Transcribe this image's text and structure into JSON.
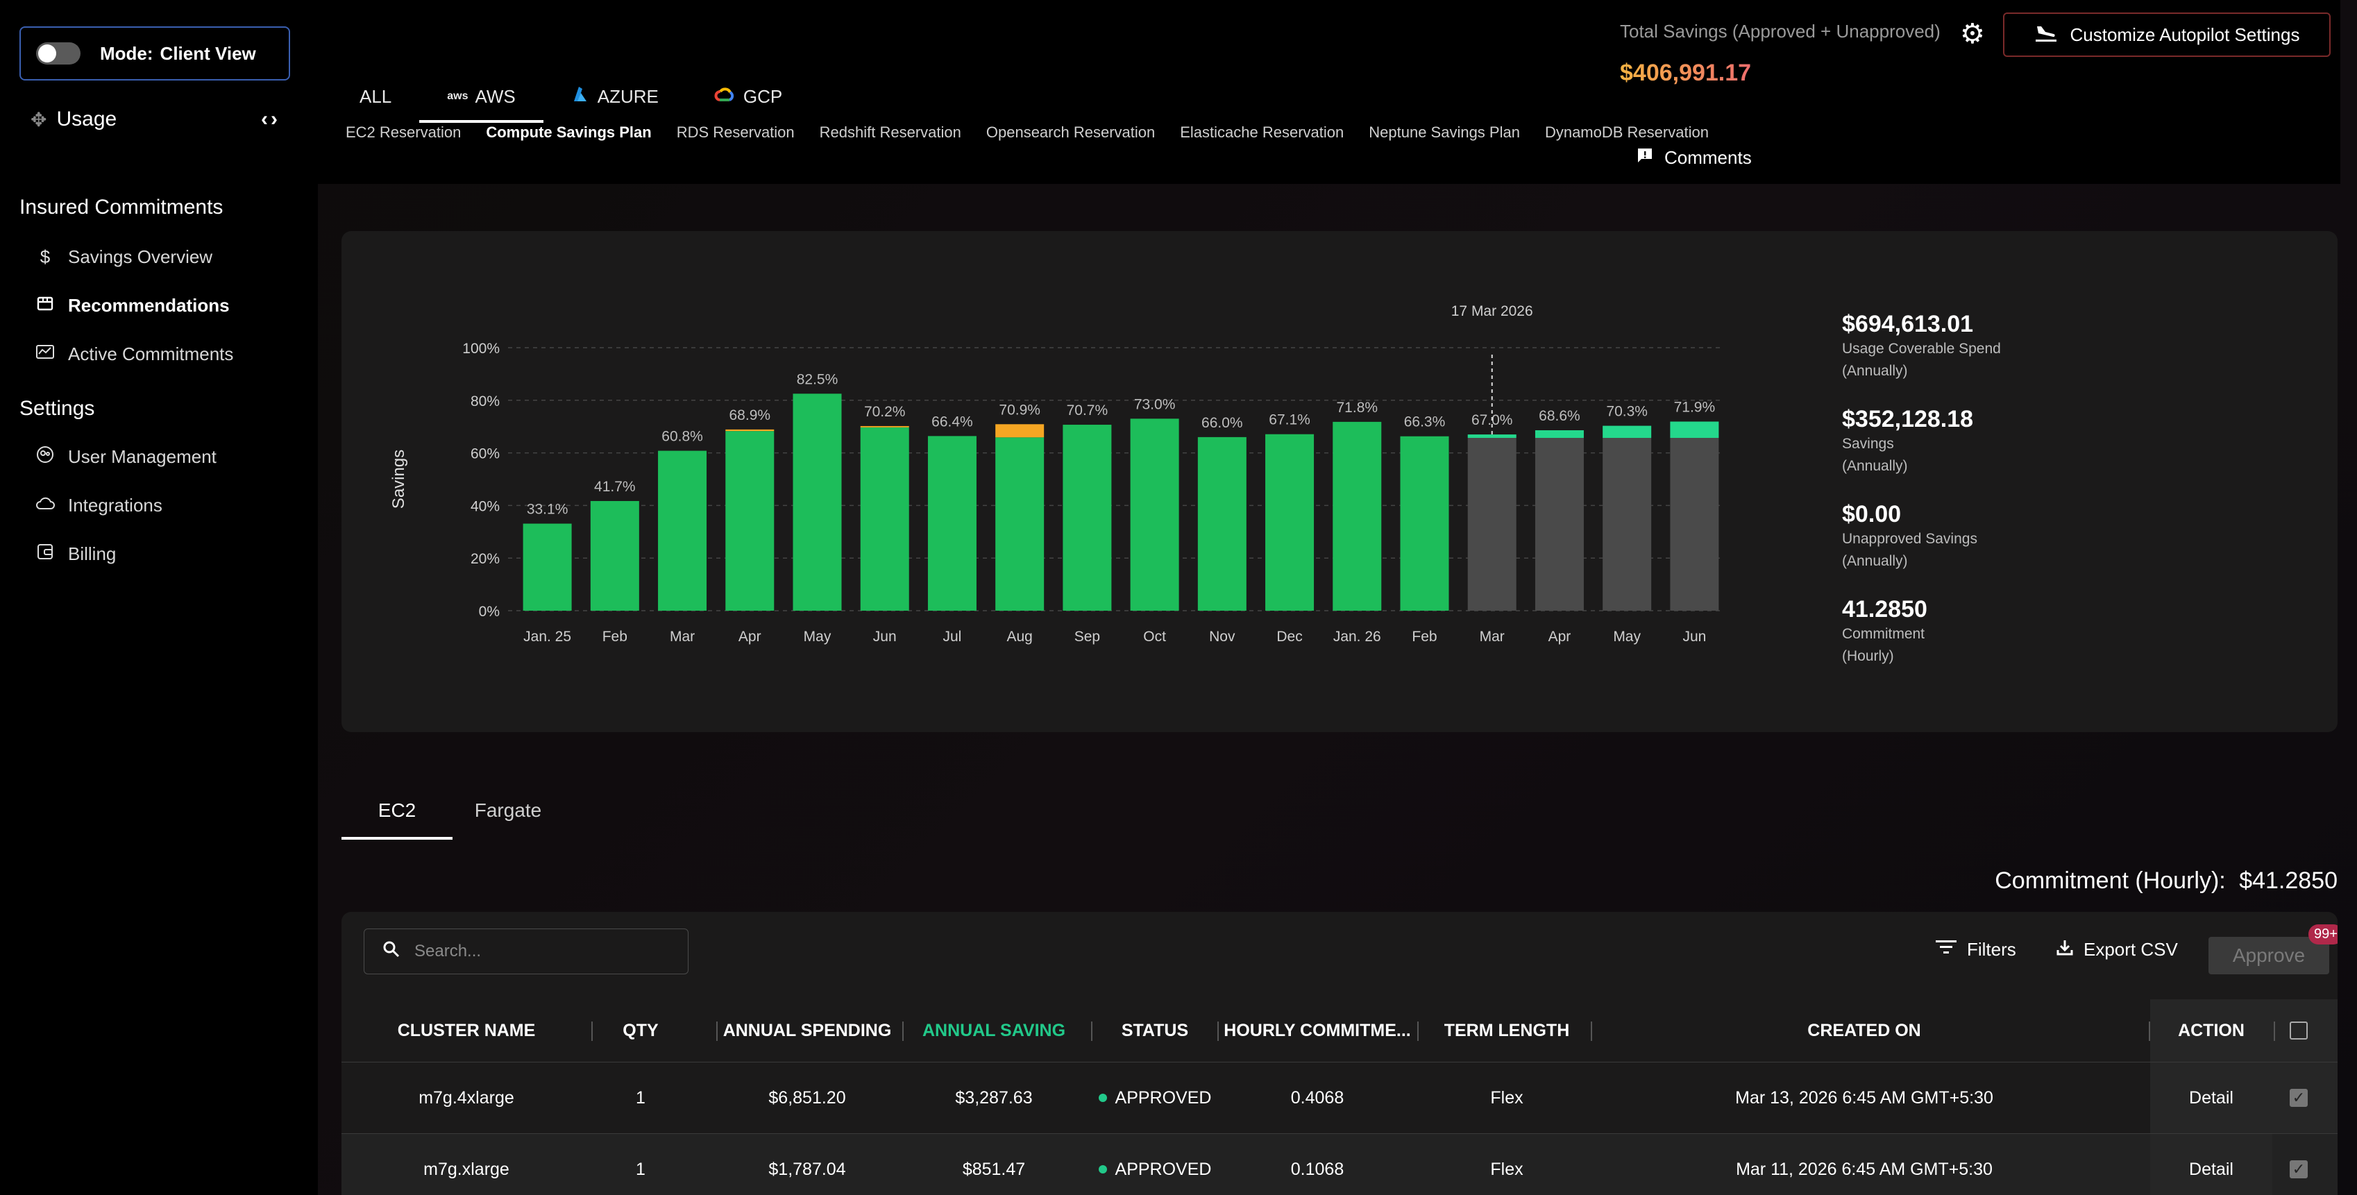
{
  "sidebar": {
    "mode_label": "Mode:",
    "mode_value": "Client View",
    "usage_label": "Usage",
    "collapse_icon": "code-arrows-icon",
    "sections": [
      {
        "title": "Insured Commitments"
      },
      {
        "title": "Settings"
      }
    ],
    "items": [
      {
        "label": "Savings Overview",
        "icon": "dollar-icon"
      },
      {
        "label": "Recommendations",
        "icon": "storefront-icon"
      },
      {
        "label": "Active Commitments",
        "icon": "chart-line-icon"
      },
      {
        "label": "User Management",
        "icon": "user-management-icon"
      },
      {
        "label": "Integrations",
        "icon": "cloud-icon"
      },
      {
        "label": "Billing",
        "icon": "wallet-icon"
      }
    ]
  },
  "header": {
    "cloud_tabs": [
      "ALL",
      "AWS",
      "AZURE",
      "GCP"
    ],
    "aws_logo_text": "aws",
    "active_cloud": "AWS",
    "sub_tabs": [
      "EC2 Reservation",
      "Compute Savings Plan",
      "RDS Reservation",
      "Redshift Reservation",
      "Opensearch Reservation",
      "Elasticache Reservation",
      "Neptune Savings Plan",
      "DynamoDB Reservation"
    ],
    "active_sub_tab": "Compute Savings Plan",
    "comments_label": "Comments",
    "total_savings_label": "Total Savings (Approved + Unapproved)",
    "total_savings_value": "$406,991.17",
    "customize_label": "Customize Autopilot Settings"
  },
  "chart_data": {
    "type": "bar",
    "ylabel": "Savings",
    "ylim": [
      0,
      100
    ],
    "yticks": [
      "0%",
      "20%",
      "40%",
      "60%",
      "80%",
      "100%"
    ],
    "categories": [
      "Jan. 25",
      "Feb",
      "Mar",
      "Apr",
      "May",
      "Jun",
      "Jul",
      "Aug",
      "Sep",
      "Oct",
      "Nov",
      "Dec",
      "Jan. 26",
      "Feb",
      "Mar",
      "Apr",
      "May",
      "Jun"
    ],
    "values": [
      33.1,
      41.7,
      60.8,
      68.9,
      82.5,
      70.2,
      66.4,
      70.9,
      70.7,
      73.0,
      66.0,
      67.1,
      71.8,
      66.3,
      67.0,
      68.6,
      70.3,
      71.9
    ],
    "labels": [
      "33.1%",
      "41.7%",
      "60.8%",
      "68.9%",
      "82.5%",
      "70.2%",
      "66.4%",
      "70.9%",
      "70.7%",
      "73.0%",
      "66.0%",
      "67.1%",
      "71.8%",
      "66.3%",
      "67.0%",
      "68.6%",
      "70.3%",
      "71.9%"
    ],
    "unapproved_segment": [
      0,
      0,
      0,
      0.6,
      0,
      0.5,
      0,
      5.0,
      0,
      0,
      0,
      0,
      0,
      0,
      0,
      0,
      0,
      0
    ],
    "projected_base": [
      0,
      0,
      0,
      0,
      0,
      0,
      0,
      0,
      0,
      0,
      0,
      0,
      0,
      0,
      65.7,
      65.7,
      65.7,
      65.7
    ],
    "projected_from_index": 14,
    "annotation": "17 Mar 2026",
    "colors": {
      "actual": "#1dbd5a",
      "unapproved": "#f5a623",
      "projected_base": "#4a4a4a",
      "projected_top": "#24d88c"
    }
  },
  "stats": [
    {
      "value": "$694,613.01",
      "label1": "Usage Coverable Spend",
      "label2": "(Annually)"
    },
    {
      "value": "$352,128.18",
      "label1": "Savings",
      "label2": "(Annually)"
    },
    {
      "value": "$0.00",
      "label1": "Unapproved Savings",
      "label2": "(Annually)"
    },
    {
      "value": "41.2850",
      "label1": "Commitment",
      "label2": "(Hourly)"
    }
  ],
  "type_tabs": [
    "EC2",
    "Fargate"
  ],
  "commitment_hourly_label": "Commitment (Hourly):",
  "commitment_hourly_value": "$41.2850",
  "table": {
    "search_placeholder": "Search...",
    "filters_label": "Filters",
    "export_label": "Export CSV",
    "approve_label": "Approve",
    "badge": "99+",
    "headers": [
      "CLUSTER NAME",
      "QTY",
      "ANNUAL SPENDING",
      "ANNUAL SAVING",
      "STATUS",
      "HOURLY COMMITME...",
      "TERM LENGTH",
      "CREATED ON",
      "ACTION"
    ],
    "rows": [
      {
        "cluster": "m7g.4xlarge",
        "qty": "1",
        "spending": "$6,851.20",
        "saving": "$3,287.63",
        "status": "APPROVED",
        "hourly": "0.4068",
        "term": "Flex",
        "created": "Mar 13, 2026 6:45 AM GMT+5:30",
        "action": "Detail"
      },
      {
        "cluster": "m7g.xlarge",
        "qty": "1",
        "spending": "$1,787.04",
        "saving": "$851.47",
        "status": "APPROVED",
        "hourly": "0.1068",
        "term": "Flex",
        "created": "Mar 11, 2026 6:45 AM GMT+5:30",
        "action": "Detail"
      }
    ]
  }
}
